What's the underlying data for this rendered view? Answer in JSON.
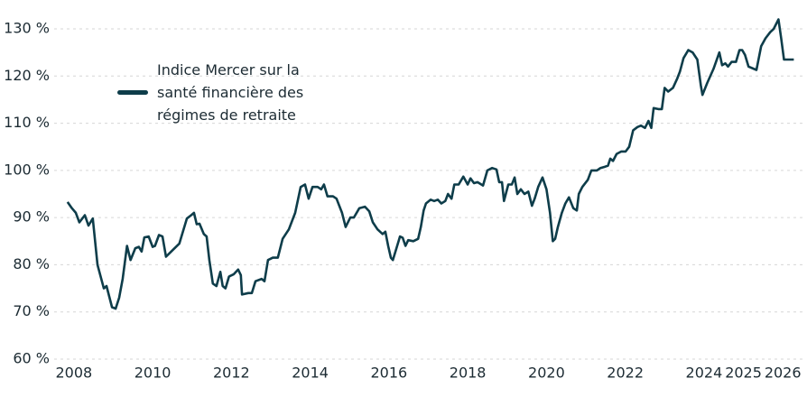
{
  "chart_data": {
    "type": "line",
    "x": [
      2007.84,
      2007.95,
      2008.05,
      2008.14,
      2008.28,
      2008.37,
      2008.48,
      2008.6,
      2008.76,
      2008.83,
      2008.97,
      2009.06,
      2009.15,
      2009.24,
      2009.35,
      2009.44,
      2009.56,
      2009.65,
      2009.72,
      2009.79,
      2009.9,
      2010.0,
      2010.06,
      2010.16,
      2010.25,
      2010.34,
      2010.52,
      2010.68,
      2010.87,
      2010.98,
      2011.05,
      2011.12,
      2011.19,
      2011.3,
      2011.37,
      2011.44,
      2011.53,
      2011.62,
      2011.72,
      2011.78,
      2011.85,
      2011.94,
      2012.06,
      2012.17,
      2012.24,
      2012.27,
      2012.43,
      2012.52,
      2012.61,
      2012.77,
      2012.84,
      2012.93,
      2013.05,
      2013.18,
      2013.3,
      2013.46,
      2013.62,
      2013.76,
      2013.87,
      2013.96,
      2014.06,
      2014.19,
      2014.28,
      2014.35,
      2014.44,
      2014.58,
      2014.67,
      2014.81,
      2014.9,
      2015.02,
      2015.11,
      2015.25,
      2015.39,
      2015.5,
      2015.59,
      2015.71,
      2015.84,
      2015.91,
      2015.98,
      2016.05,
      2016.1,
      2016.19,
      2016.28,
      2016.35,
      2016.42,
      2016.49,
      2016.62,
      2016.74,
      2016.81,
      2016.88,
      2016.94,
      2017.06,
      2017.15,
      2017.24,
      2017.33,
      2017.43,
      2017.5,
      2017.59,
      2017.66,
      2017.77,
      2017.89,
      2018.0,
      2018.07,
      2018.16,
      2018.25,
      2018.39,
      2018.5,
      2018.62,
      2018.73,
      2018.8,
      2018.87,
      2018.92,
      2019.03,
      2019.12,
      2019.19,
      2019.26,
      2019.35,
      2019.44,
      2019.54,
      2019.63,
      2019.7,
      2019.79,
      2019.9,
      2020.0,
      2020.09,
      2020.16,
      2020.22,
      2020.29,
      2020.39,
      2020.48,
      2020.57,
      2020.68,
      2020.77,
      2020.82,
      2020.91,
      2021.05,
      2021.14,
      2021.28,
      2021.37,
      2021.49,
      2021.56,
      2021.62,
      2021.69,
      2021.78,
      2021.9,
      2022.01,
      2022.1,
      2022.2,
      2022.31,
      2022.4,
      2022.5,
      2022.59,
      2022.66,
      2022.72,
      2022.84,
      2022.93,
      2023.0,
      2023.09,
      2023.21,
      2023.32,
      2023.39,
      2023.48,
      2023.6,
      2023.71,
      2023.83,
      2023.92,
      2023.96,
      2024.08,
      2024.24,
      2024.39,
      2024.46,
      2024.54,
      2024.61,
      2024.7,
      2024.81,
      2024.9,
      2024.97,
      2025.04,
      2025.13,
      2025.33,
      2025.45,
      2025.56,
      2025.68,
      2025.77,
      2025.89,
      2025.96,
      2026.03,
      2026.12,
      2026.28
    ],
    "series": [
      {
        "name": "Indice Mercer sur la santé financière des régimes de retraite",
        "color": "#0e3d4a",
        "values": [
          93.3,
          92,
          91,
          89,
          90.5,
          88.3,
          89.8,
          80,
          75,
          75.5,
          71,
          70.7,
          73,
          77,
          84,
          81,
          83.5,
          83.8,
          82.8,
          85.8,
          86,
          83.8,
          84,
          86.3,
          86,
          81.7,
          83.2,
          84.5,
          89.8,
          90.5,
          91,
          88.6,
          88.7,
          86.5,
          86,
          81,
          76,
          75.5,
          78.5,
          75.5,
          75,
          77.5,
          78,
          79,
          77.8,
          73.7,
          74,
          74,
          76.5,
          77,
          76.5,
          81,
          81.5,
          81.5,
          85.5,
          87.5,
          91,
          96.5,
          97,
          94,
          96.5,
          96.5,
          96,
          97,
          94.5,
          94.5,
          94,
          91,
          88,
          90,
          90,
          92,
          92.3,
          91.3,
          89,
          87.5,
          86.5,
          87,
          84,
          81.5,
          81,
          83.5,
          86,
          85.7,
          84,
          85.2,
          85,
          85.5,
          88,
          91.5,
          93,
          93.8,
          93.5,
          93.8,
          93,
          93.5,
          95,
          94,
          97,
          97,
          98.7,
          97,
          98.3,
          97.3,
          97.5,
          96.8,
          100,
          100.5,
          100.2,
          97.5,
          97.5,
          93.5,
          97,
          97,
          98.5,
          95,
          96,
          95,
          95.5,
          92.5,
          94,
          96.5,
          98.5,
          96,
          91,
          85,
          85.5,
          88,
          91,
          93,
          94.3,
          92,
          91.5,
          95,
          96.5,
          98,
          100,
          100,
          100.5,
          100.8,
          101,
          102.5,
          102,
          103.5,
          104,
          104,
          105,
          108.5,
          109.2,
          109.5,
          109,
          110.5,
          109,
          113.2,
          113,
          113,
          117.5,
          116.7,
          117.5,
          119.5,
          121,
          123.8,
          125.5,
          125,
          123.5,
          118,
          116,
          118.5,
          121.5,
          125,
          122.3,
          122.7,
          122,
          123,
          123,
          125.5,
          125.5,
          124.5,
          122,
          121.3,
          126.3,
          128,
          129.3,
          130,
          132,
          128,
          123.5,
          123.5,
          123.5
        ]
      }
    ],
    "xlim": [
      2007.5,
      2026.5
    ],
    "xticks": [
      2008,
      2010,
      2012,
      2014,
      2016,
      2018,
      2020,
      2022,
      2024,
      2025,
      2026
    ],
    "ylim": [
      60,
      130
    ],
    "yticks": [
      {
        "value": 60,
        "label": "60 %"
      },
      {
        "value": 70,
        "label": "70 %"
      },
      {
        "value": 80,
        "label": "80 %"
      },
      {
        "value": 90,
        "label": "90 %"
      },
      {
        "value": 100,
        "label": "100 %"
      },
      {
        "value": 110,
        "label": "110 %"
      },
      {
        "value": 120,
        "label": "120 %"
      },
      {
        "value": 130,
        "label": "130 %"
      }
    ],
    "grid": true,
    "legend": "upper left"
  }
}
